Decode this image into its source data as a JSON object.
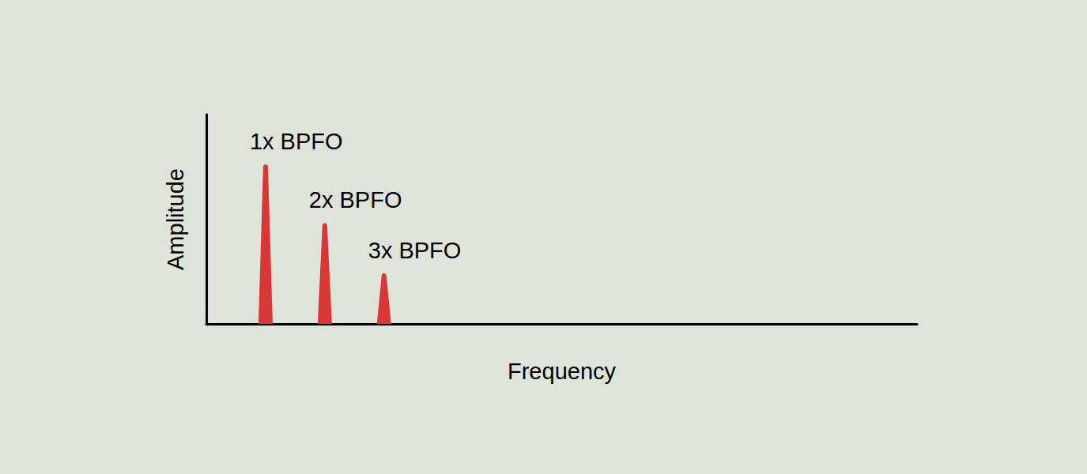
{
  "chart_data": {
    "type": "bar",
    "x_label": "Frequency",
    "y_label": "Amplitude",
    "labels": [
      "1x BPFO",
      "2x BPFO",
      "3x BPFO"
    ],
    "x": [
      1,
      2,
      3
    ],
    "values": [
      7.5,
      4.7,
      2.3
    ],
    "color": "#d93636",
    "xlim": [
      0,
      12
    ],
    "ylim": [
      0,
      10
    ],
    "grid": false,
    "tick_labels": false
  }
}
